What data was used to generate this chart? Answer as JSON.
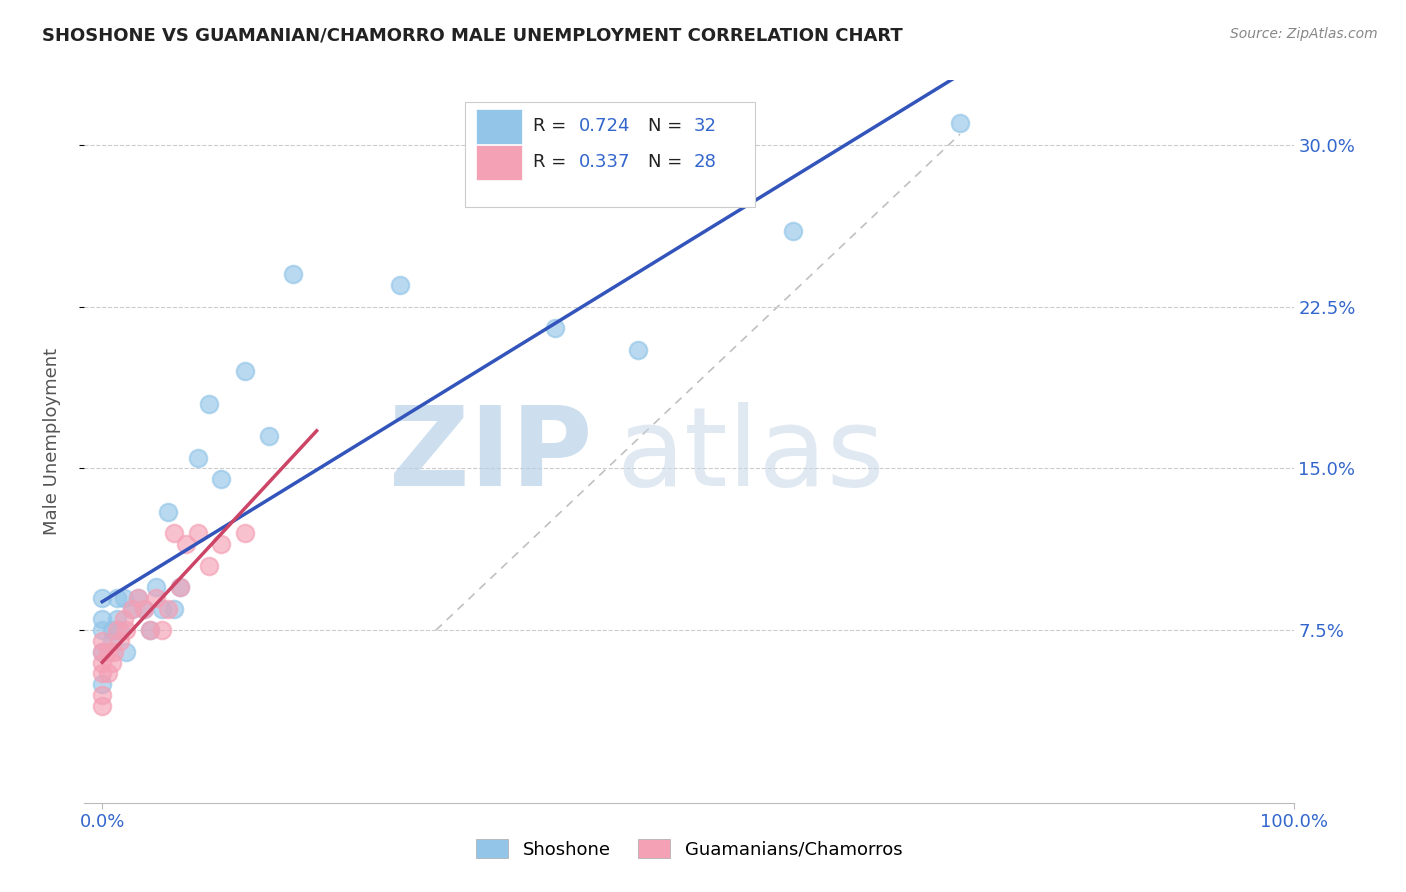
{
  "title": "SHOSHONE VS GUAMANIAN/CHAMORRO MALE UNEMPLOYMENT CORRELATION CHART",
  "source": "Source: ZipAtlas.com",
  "ylabel": "Male Unemployment",
  "ytick_vals": [
    0.075,
    0.15,
    0.225,
    0.3
  ],
  "ytick_labels": [
    "7.5%",
    "15.0%",
    "22.5%",
    "30.0%"
  ],
  "r_shoshone": 0.724,
  "n_shoshone": 32,
  "r_guamanian": 0.337,
  "n_guamanian": 28,
  "shoshone_color": "#92C5E8",
  "guamanian_color": "#F4A0B5",
  "trend_blue": "#3355BB",
  "trend_pink": "#CC4466",
  "diag_color": "#CCCCCC",
  "shoshone_x": [
    0.0,
    0.0,
    0.0,
    0.0,
    0.0,
    0.008,
    0.008,
    0.012,
    0.012,
    0.015,
    0.018,
    0.02,
    0.025,
    0.03,
    0.035,
    0.04,
    0.045,
    0.05,
    0.055,
    0.06,
    0.065,
    0.08,
    0.09,
    0.1,
    0.12,
    0.14,
    0.16,
    0.25,
    0.38,
    0.45,
    0.58,
    0.72
  ],
  "shoshone_y": [
    0.05,
    0.065,
    0.075,
    0.08,
    0.09,
    0.07,
    0.075,
    0.08,
    0.09,
    0.075,
    0.09,
    0.065,
    0.085,
    0.09,
    0.085,
    0.075,
    0.095,
    0.085,
    0.13,
    0.085,
    0.095,
    0.155,
    0.18,
    0.145,
    0.195,
    0.165,
    0.24,
    0.235,
    0.215,
    0.205,
    0.26,
    0.31
  ],
  "guamanian_x": [
    0.0,
    0.0,
    0.0,
    0.0,
    0.0,
    0.0,
    0.005,
    0.005,
    0.008,
    0.01,
    0.012,
    0.015,
    0.018,
    0.02,
    0.025,
    0.03,
    0.035,
    0.04,
    0.045,
    0.05,
    0.055,
    0.06,
    0.065,
    0.07,
    0.08,
    0.09,
    0.1,
    0.12
  ],
  "guamanian_y": [
    0.04,
    0.045,
    0.055,
    0.06,
    0.065,
    0.07,
    0.055,
    0.065,
    0.06,
    0.065,
    0.075,
    0.07,
    0.08,
    0.075,
    0.085,
    0.09,
    0.085,
    0.075,
    0.09,
    0.075,
    0.085,
    0.12,
    0.095,
    0.115,
    0.12,
    0.105,
    0.115,
    0.12
  ],
  "xlim": [
    -0.015,
    1.0
  ],
  "ylim": [
    -0.005,
    0.33
  ]
}
